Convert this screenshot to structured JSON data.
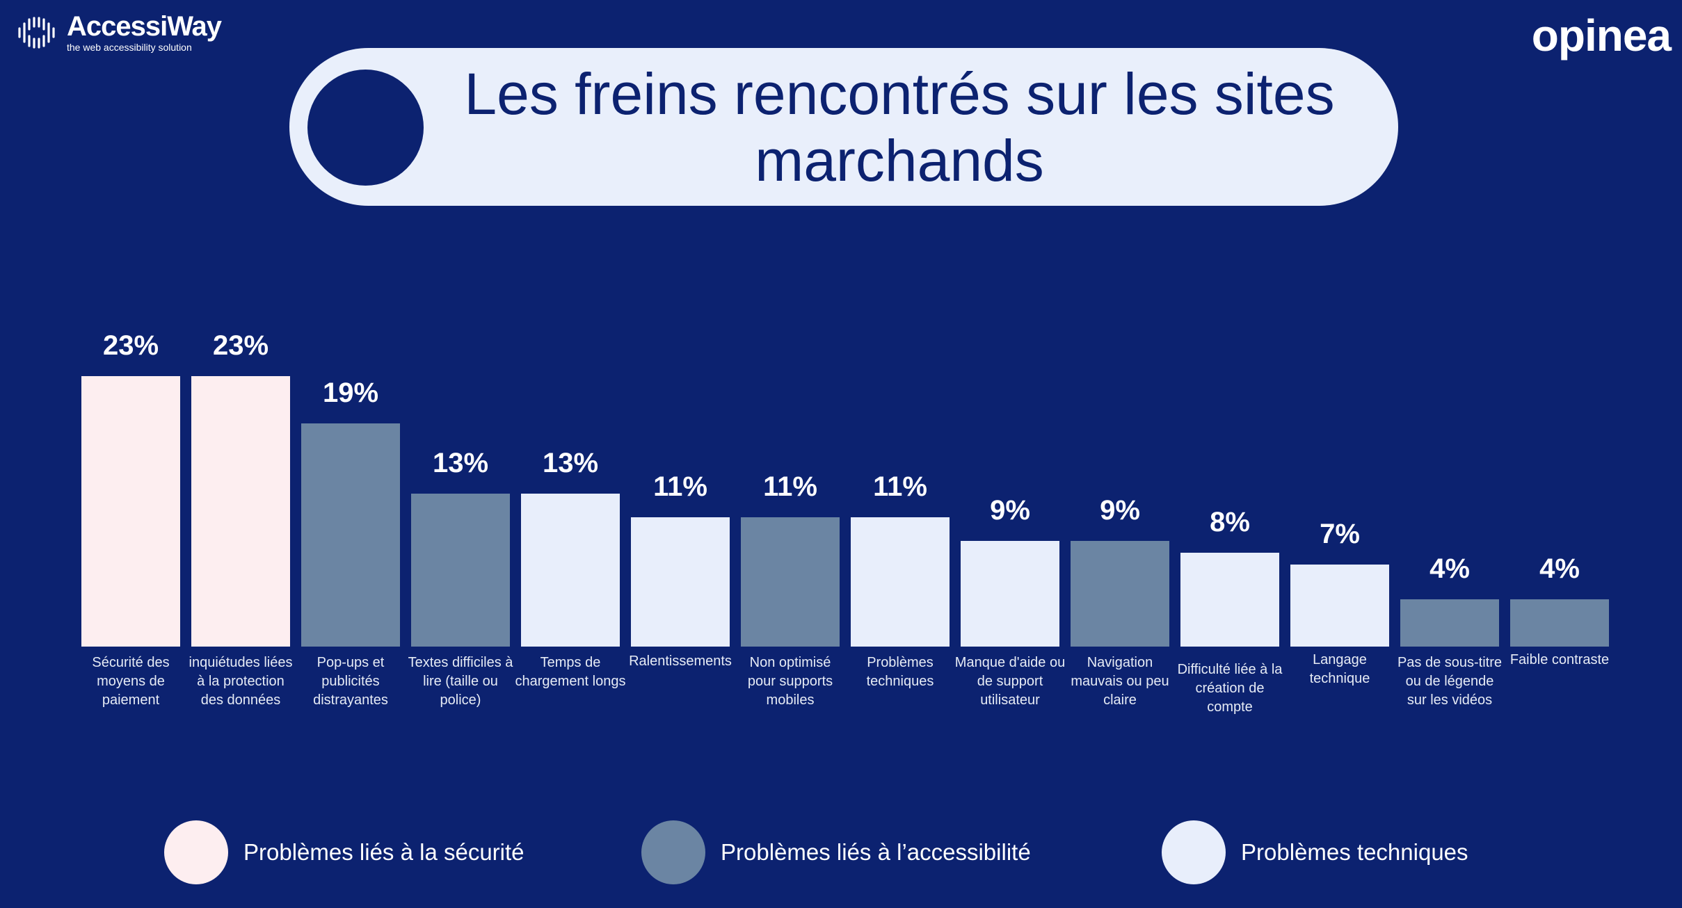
{
  "header": {
    "left_logo": {
      "name": "AccessiWay",
      "tagline": "the web accessibility solution"
    },
    "right_logo": {
      "name": "opinea"
    },
    "title": "Les freins rencontrés sur les sites marchands"
  },
  "colors": {
    "background": "#0c2270",
    "securite": "#fdeef0",
    "accessibilite": "#6b85a3",
    "techniques": "#e8eefb"
  },
  "chart_data": {
    "type": "bar",
    "title": "Les freins rencontrés sur les sites marchands",
    "unit": "%",
    "categories": [
      "Sécurité des moyens de paiement",
      "inquiétudes liées à la protection des données",
      "Pop-ups et publicités distrayantes",
      "Textes difficiles à lire (taille ou police)",
      "Temps de chargement longs",
      "Ralentissements",
      "Non optimisé pour supports mobiles",
      "Problèmes techniques",
      "Manque d'aide ou de support utilisateur",
      "Navigation mauvais ou peu claire",
      "Difficulté liée à la création de compte",
      "Langage technique",
      "Pas de sous-titre ou de légende sur les vidéos",
      "Faible contraste"
    ],
    "values": [
      23,
      23,
      19,
      13,
      13,
      11,
      11,
      11,
      9,
      9,
      8,
      7,
      4,
      4
    ],
    "value_labels": [
      "23%",
      "23%",
      "19%",
      "13%",
      "13%",
      "11%",
      "11%",
      "11%",
      "9%",
      "9%",
      "8%",
      "7%",
      "4%",
      "4%"
    ],
    "groups": [
      "securite",
      "securite",
      "accessibilite",
      "accessibilite",
      "techniques",
      "techniques",
      "accessibilite",
      "techniques",
      "techniques",
      "accessibilite",
      "techniques",
      "techniques",
      "accessibilite",
      "accessibilite"
    ],
    "ylim": [
      0,
      25
    ],
    "grid": false,
    "legend_placement": "bottom",
    "legend": [
      {
        "key": "securite",
        "label": "Problèmes liés à la sécurité"
      },
      {
        "key": "accessibilite",
        "label": "Problèmes liés à l’accessibilité"
      },
      {
        "key": "techniques",
        "label": "Problèmes techniques"
      }
    ]
  }
}
